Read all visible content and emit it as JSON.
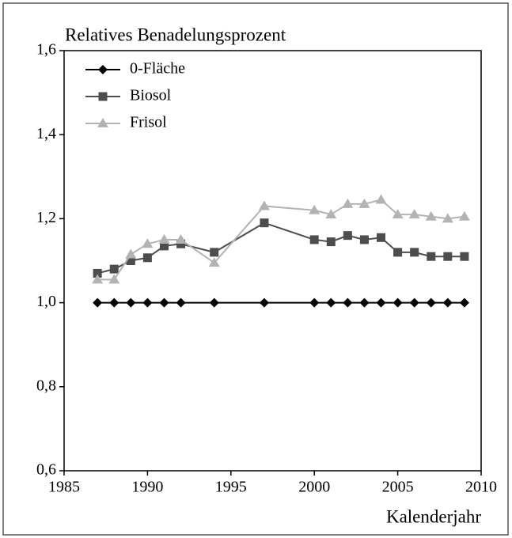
{
  "chart_data": {
    "type": "line",
    "title": "Relatives Benadelungsprozent",
    "x_label": "Kalenderjahr",
    "x": [
      1987,
      1988,
      1989,
      1990,
      1991,
      1992,
      1994,
      1997,
      2000,
      2001,
      2002,
      2003,
      2004,
      2005,
      2006,
      2007,
      2008,
      2009
    ],
    "series": [
      {
        "name": "0-Fläche",
        "color": "#000000",
        "marker": "diamond",
        "values": [
          1.0,
          1.0,
          1.0,
          1.0,
          1.0,
          1.0,
          1.0,
          1.0,
          1.0,
          1.0,
          1.0,
          1.0,
          1.0,
          1.0,
          1.0,
          1.0,
          1.0,
          1.0
        ]
      },
      {
        "name": "Biosol",
        "color": "#4d4d4d",
        "marker": "square",
        "values": [
          1.07,
          1.08,
          1.1,
          1.107,
          1.135,
          1.14,
          1.12,
          1.19,
          1.15,
          1.145,
          1.16,
          1.15,
          1.155,
          1.12,
          1.12,
          1.11,
          1.11,
          1.11
        ]
      },
      {
        "name": "Frisol",
        "color": "#b3b3b3",
        "marker": "triangle",
        "values": [
          1.055,
          1.055,
          1.115,
          1.14,
          1.15,
          1.15,
          1.095,
          1.23,
          1.22,
          1.21,
          1.235,
          1.235,
          1.245,
          1.21,
          1.21,
          1.205,
          1.2,
          1.205
        ]
      }
    ],
    "xlim": [
      1985,
      2010
    ],
    "xticks": [
      1985,
      1990,
      1995,
      2000,
      2005,
      2010
    ],
    "ylim": [
      0.6,
      1.6
    ],
    "yticks": [
      {
        "value": 0.6,
        "label": "0,6"
      },
      {
        "value": 0.8,
        "label": "0,8"
      },
      {
        "value": 1.0,
        "label": "1,0"
      },
      {
        "value": 1.2,
        "label": "1,2"
      },
      {
        "value": 1.4,
        "label": "1,4"
      },
      {
        "value": 1.6,
        "label": "1,6"
      }
    ],
    "legend": "top-left"
  }
}
